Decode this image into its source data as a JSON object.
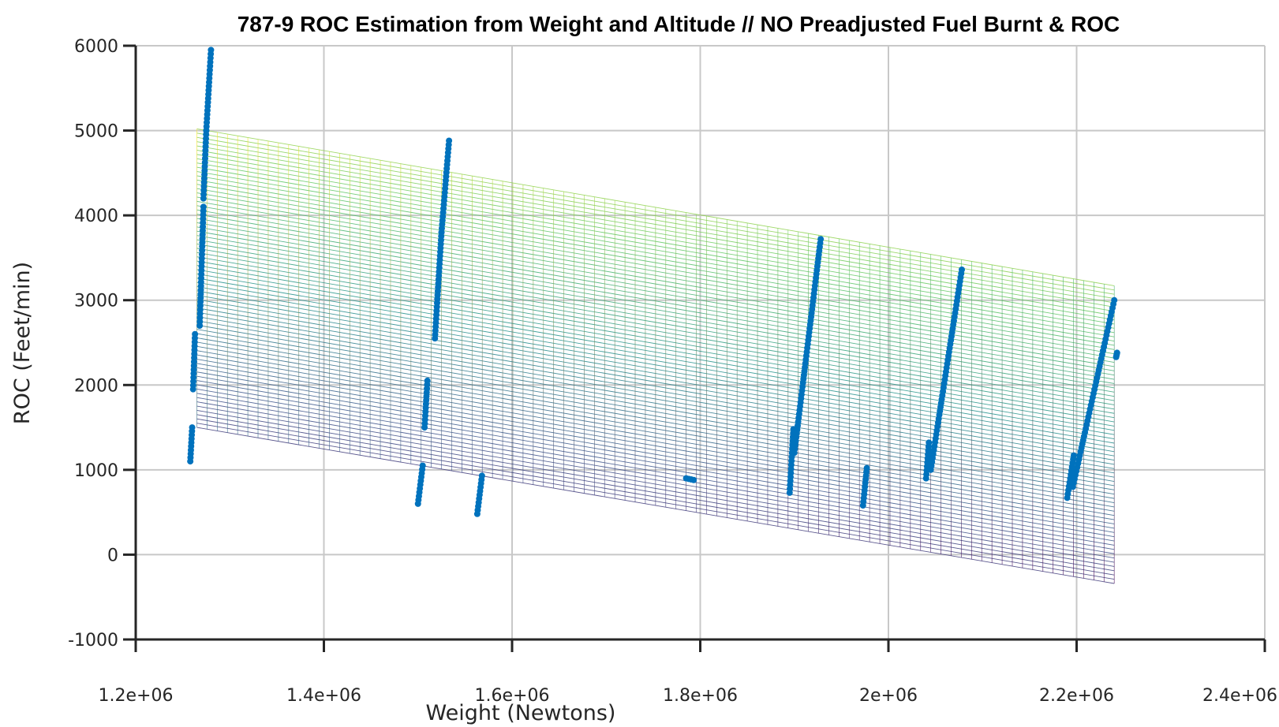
{
  "chart_data": {
    "type": "scatter",
    "title": "787-9 ROC Estimation from Weight and Altitude // NO Preadjusted Fuel Burnt & ROC",
    "xlabel": "Weight (Newtons)",
    "ylabel": "ROC (Feet/min)",
    "xlim": [
      1200000,
      2400000
    ],
    "ylim": [
      -1000,
      6000
    ],
    "x_ticks": [
      1200000,
      1400000,
      1600000,
      1800000,
      2000000,
      2200000,
      2400000
    ],
    "x_tick_labels": [
      "1.2e+06",
      "1.4e+06",
      "1.6e+06",
      "1.8e+06",
      "2e+06",
      "2.2e+06",
      "2.4e+06"
    ],
    "y_ticks": [
      -1000,
      0,
      1000,
      2000,
      3000,
      4000,
      5000,
      6000
    ],
    "y_tick_labels": [
      "-1000",
      "0",
      "1000",
      "2000",
      "3000",
      "4000",
      "5000",
      "6000"
    ],
    "grid": true,
    "series": [
      {
        "type": "scatter",
        "color": "#0072BD",
        "segments": [
          {
            "x0": 1258000,
            "y0": 1100,
            "x1": 1260000,
            "y1": 1500
          },
          {
            "x0": 1261000,
            "y0": 1950,
            "x1": 1263000,
            "y1": 2600
          },
          {
            "x0": 1268000,
            "y0": 2700,
            "x1": 1272000,
            "y1": 4100
          },
          {
            "x0": 1272000,
            "y0": 4200,
            "x1": 1275000,
            "y1": 5000
          },
          {
            "x0": 1275000,
            "y0": 5000,
            "x1": 1280000,
            "y1": 5950
          },
          {
            "x0": 1500000,
            "y0": 600,
            "x1": 1505000,
            "y1": 1050
          },
          {
            "x0": 1507000,
            "y0": 1500,
            "x1": 1510000,
            "y1": 2050
          },
          {
            "x0": 1518000,
            "y0": 2550,
            "x1": 1525000,
            "y1": 3800
          },
          {
            "x0": 1525000,
            "y0": 3800,
            "x1": 1533000,
            "y1": 4880
          },
          {
            "x0": 1563000,
            "y0": 480,
            "x1": 1568000,
            "y1": 930
          },
          {
            "x0": 1785000,
            "y0": 900,
            "x1": 1793000,
            "y1": 880
          },
          {
            "x0": 1895000,
            "y0": 730,
            "x1": 1899000,
            "y1": 1480
          },
          {
            "x0": 1900000,
            "y0": 1200,
            "x1": 1928000,
            "y1": 3720
          },
          {
            "x0": 1973000,
            "y0": 580,
            "x1": 1977000,
            "y1": 1020
          },
          {
            "x0": 2040000,
            "y0": 900,
            "x1": 2043000,
            "y1": 1320
          },
          {
            "x0": 2045000,
            "y0": 1000,
            "x1": 2078000,
            "y1": 3360
          },
          {
            "x0": 2190000,
            "y0": 670,
            "x1": 2197000,
            "y1": 1170
          },
          {
            "x0": 2196000,
            "y0": 800,
            "x1": 2240000,
            "y1": 3000
          },
          {
            "x0": 2242000,
            "y0": 2330,
            "x1": 2243000,
            "y1": 2380
          }
        ]
      }
    ],
    "surface": {
      "type": "mesh",
      "x_range": [
        1265000,
        2240000
      ],
      "top_edge": [
        5020,
        3170
      ],
      "bottom_edge": [
        1500,
        -340
      ],
      "colormap": [
        "#440154",
        "#3b528b",
        "#21918c",
        "#5ec962",
        "#fde725"
      ]
    }
  }
}
